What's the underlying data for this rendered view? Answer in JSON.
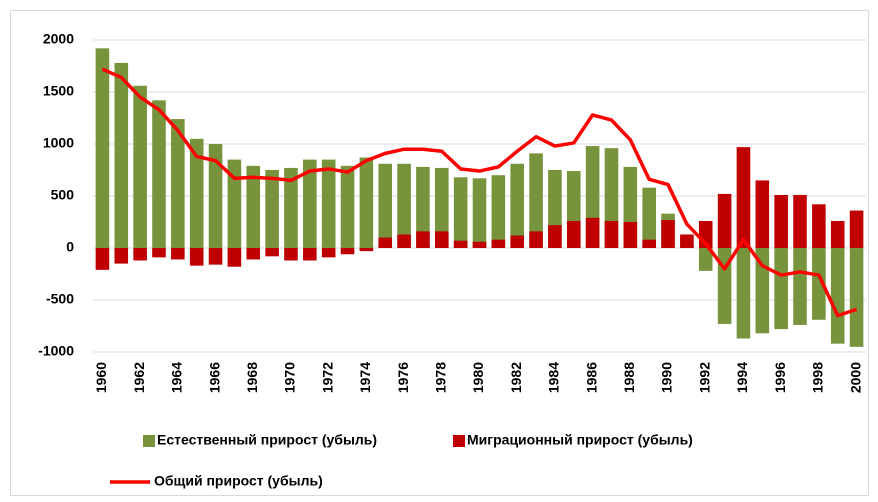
{
  "chart_data": {
    "type": "bar_line",
    "categories": [
      "1960",
      null,
      "1962",
      null,
      "1964",
      null,
      "1966",
      null,
      "1968",
      null,
      "1970",
      null,
      "1972",
      null,
      "1974",
      null,
      "1976",
      null,
      "1978",
      null,
      "1980",
      null,
      "1982",
      null,
      "1984",
      null,
      "1986",
      null,
      "1988",
      null,
      "1990",
      null,
      "1992",
      null,
      "1994",
      null,
      "1996",
      null,
      "1998",
      null,
      "2000"
    ],
    "series": [
      {
        "name": "Естественный прирост (убыль)",
        "color": "#77933c",
        "kind": "bar",
        "values": [
          1920,
          1780,
          1560,
          1420,
          1240,
          1050,
          1000,
          850,
          790,
          750,
          770,
          850,
          850,
          790,
          870,
          810,
          810,
          780,
          770,
          680,
          670,
          700,
          810,
          910,
          750,
          740,
          980,
          960,
          780,
          580,
          330,
          100,
          -220,
          -730,
          -870,
          -820,
          -780,
          -740,
          -690,
          -920,
          -950
        ]
      },
      {
        "name": "Миграционный прирост (убыль)",
        "color": "#c00000",
        "kind": "bar",
        "values": [
          -210,
          -150,
          -120,
          -90,
          -110,
          -170,
          -160,
          -180,
          -110,
          -80,
          -120,
          -120,
          -90,
          -60,
          -30,
          100,
          130,
          160,
          160,
          70,
          60,
          80,
          120,
          160,
          220,
          260,
          290,
          260,
          250,
          80,
          270,
          130,
          260,
          520,
          970,
          650,
          510,
          510,
          420,
          260,
          360
        ]
      },
      {
        "name": "Общий прирост (убыль)",
        "color": "#ff0000",
        "kind": "line",
        "values": [
          1720,
          1640,
          1450,
          1330,
          1130,
          880,
          840,
          670,
          680,
          670,
          650,
          740,
          760,
          730,
          840,
          910,
          950,
          950,
          930,
          760,
          740,
          780,
          930,
          1070,
          980,
          1010,
          1280,
          1230,
          1040,
          660,
          610,
          230,
          40,
          -200,
          80,
          -170,
          -260,
          -230,
          -260,
          -650,
          -590
        ]
      }
    ],
    "ylim": [
      -1000,
      2000
    ],
    "yticks": [
      -1000,
      -500,
      0,
      500,
      1000,
      1500,
      2000
    ],
    "grid": true
  }
}
